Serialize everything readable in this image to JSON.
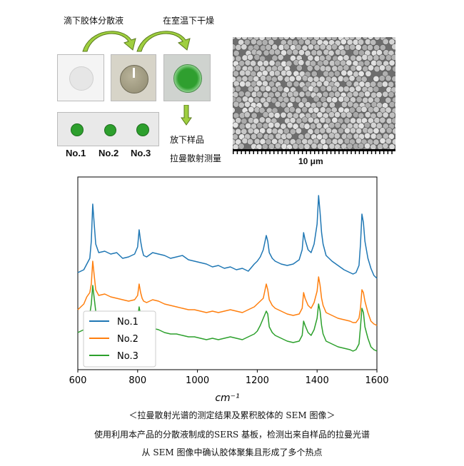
{
  "process": {
    "step1_label": "滴下胶体分散液",
    "step2_label": "在室温下干燥",
    "step3_label": "放下样品",
    "step4_label": "拉曼散射测量",
    "sample_labels": [
      "No.1",
      "No.2",
      "No.3"
    ]
  },
  "sem": {
    "scale_label": "10 μm"
  },
  "chart_data": {
    "type": "line",
    "title": "",
    "xlabel": "cm⁻¹",
    "ylabel": "",
    "xlim": [
      600,
      1600
    ],
    "x_ticks": [
      600,
      800,
      1000,
      1200,
      1400,
      1600
    ],
    "legend_position": "lower-left",
    "y_ticks": "none",
    "series": [
      {
        "name": "No.1",
        "color": "#1f77b4",
        "x": [
          600,
          620,
          630,
          640,
          645,
          650,
          655,
          660,
          670,
          690,
          710,
          730,
          750,
          770,
          790,
          800,
          805,
          810,
          815,
          820,
          830,
          850,
          870,
          890,
          910,
          930,
          950,
          970,
          990,
          1010,
          1030,
          1050,
          1070,
          1090,
          1110,
          1130,
          1150,
          1170,
          1190,
          1200,
          1210,
          1220,
          1230,
          1235,
          1240,
          1250,
          1260,
          1280,
          1300,
          1320,
          1340,
          1350,
          1355,
          1360,
          1370,
          1380,
          1390,
          1400,
          1405,
          1410,
          1415,
          1420,
          1430,
          1450,
          1470,
          1490,
          1510,
          1520,
          1530,
          1540,
          1545,
          1550,
          1555,
          1560,
          1570,
          1580,
          1590,
          1600
        ],
        "y": [
          8.8,
          9.0,
          9.4,
          9.8,
          11.0,
          13.6,
          12.2,
          10.8,
          10.2,
          10.3,
          10.1,
          10.2,
          9.8,
          9.9,
          10.1,
          10.6,
          11.8,
          11.0,
          10.4,
          10.0,
          9.9,
          10.2,
          10.1,
          10.0,
          9.8,
          9.9,
          10.0,
          9.7,
          9.6,
          9.5,
          9.4,
          9.2,
          9.3,
          9.1,
          9.2,
          9.0,
          9.1,
          8.9,
          9.4,
          9.6,
          9.9,
          10.4,
          11.4,
          11.0,
          10.2,
          9.8,
          9.6,
          9.4,
          9.3,
          9.4,
          9.7,
          10.4,
          11.6,
          11.1,
          10.4,
          10.2,
          10.8,
          12.2,
          14.2,
          13.0,
          11.6,
          10.8,
          10.0,
          9.6,
          9.3,
          9.0,
          8.8,
          8.7,
          8.8,
          9.3,
          10.8,
          12.9,
          12.3,
          11.0,
          9.8,
          9.1,
          8.6,
          8.4
        ]
      },
      {
        "name": "No.2",
        "color": "#ff7f0e",
        "x": [
          600,
          620,
          630,
          640,
          645,
          650,
          655,
          660,
          670,
          690,
          710,
          730,
          750,
          770,
          790,
          800,
          805,
          810,
          815,
          820,
          830,
          850,
          870,
          890,
          910,
          930,
          950,
          970,
          990,
          1010,
          1030,
          1050,
          1070,
          1090,
          1110,
          1130,
          1150,
          1170,
          1190,
          1200,
          1210,
          1220,
          1230,
          1235,
          1240,
          1250,
          1260,
          1280,
          1300,
          1320,
          1340,
          1350,
          1355,
          1360,
          1370,
          1380,
          1390,
          1400,
          1405,
          1410,
          1415,
          1420,
          1430,
          1450,
          1470,
          1490,
          1510,
          1520,
          1530,
          1540,
          1545,
          1550,
          1555,
          1560,
          1570,
          1580,
          1590,
          1600
        ],
        "y": [
          6.2,
          6.6,
          7.1,
          7.4,
          8.0,
          9.6,
          8.6,
          7.6,
          7.2,
          7.3,
          7.1,
          7.0,
          6.9,
          6.8,
          6.9,
          7.2,
          8.0,
          7.4,
          7.0,
          6.8,
          6.7,
          6.9,
          6.8,
          6.6,
          6.5,
          6.4,
          6.3,
          6.2,
          6.2,
          6.1,
          6.0,
          6.1,
          6.0,
          6.1,
          6.2,
          6.1,
          6.0,
          6.2,
          6.4,
          6.6,
          6.8,
          7.0,
          8.0,
          7.6,
          6.9,
          6.5,
          6.3,
          6.1,
          5.9,
          5.8,
          5.9,
          6.3,
          7.4,
          7.0,
          6.5,
          6.3,
          6.7,
          7.5,
          8.5,
          7.9,
          7.0,
          6.5,
          6.0,
          5.8,
          5.6,
          5.5,
          5.4,
          5.3,
          5.3,
          5.6,
          6.3,
          7.6,
          7.4,
          6.8,
          6.0,
          5.4,
          5.2,
          5.1
        ]
      },
      {
        "name": "No.3",
        "color": "#2ca02c",
        "x": [
          600,
          620,
          630,
          640,
          645,
          650,
          655,
          660,
          670,
          690,
          710,
          730,
          750,
          770,
          790,
          800,
          805,
          810,
          815,
          820,
          830,
          850,
          870,
          890,
          910,
          930,
          950,
          970,
          990,
          1010,
          1030,
          1050,
          1070,
          1090,
          1110,
          1130,
          1150,
          1170,
          1190,
          1200,
          1210,
          1220,
          1230,
          1235,
          1240,
          1250,
          1260,
          1280,
          1300,
          1320,
          1340,
          1350,
          1355,
          1360,
          1370,
          1380,
          1390,
          1400,
          1405,
          1410,
          1415,
          1420,
          1430,
          1450,
          1470,
          1490,
          1510,
          1520,
          1530,
          1540,
          1545,
          1550,
          1555,
          1560,
          1570,
          1580,
          1590,
          1600
        ],
        "y": [
          4.6,
          4.8,
          5.3,
          5.9,
          6.6,
          7.9,
          7.0,
          6.1,
          5.6,
          5.6,
          5.4,
          5.2,
          5.1,
          5.0,
          5.2,
          5.6,
          6.4,
          5.8,
          5.3,
          5.0,
          4.8,
          4.9,
          4.8,
          4.6,
          4.5,
          4.5,
          4.4,
          4.3,
          4.3,
          4.2,
          4.1,
          4.2,
          4.1,
          4.2,
          4.3,
          4.2,
          4.1,
          4.3,
          4.5,
          4.7,
          5.1,
          5.6,
          6.1,
          5.9,
          5.0,
          4.6,
          4.4,
          4.2,
          4.0,
          3.9,
          4.0,
          4.4,
          5.4,
          5.1,
          4.6,
          4.4,
          4.8,
          5.6,
          6.6,
          6.1,
          5.1,
          4.5,
          4.0,
          3.8,
          3.6,
          3.5,
          3.4,
          3.3,
          3.4,
          3.8,
          5.0,
          6.3,
          6.0,
          5.0,
          4.2,
          3.6,
          3.4,
          3.3
        ]
      }
    ]
  },
  "captions": {
    "line1": "＜拉曼散射光谱的测定结果及累积胶体的 SEM 图像＞",
    "line2": "使用利用本产品的分散液制成的SERS 基板，检测出来自样品的拉曼光谱",
    "line3": "从 SEM 图像中确认胶体聚集且形成了多个热点"
  }
}
